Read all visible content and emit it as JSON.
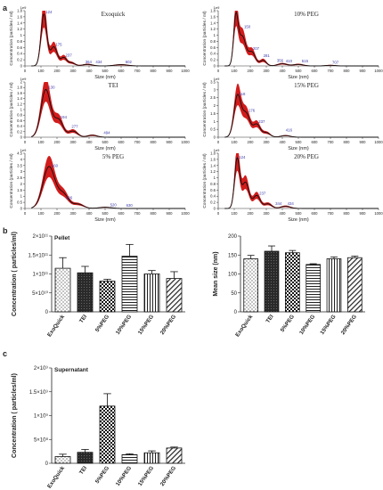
{
  "panels": {
    "a": "a",
    "b": "b",
    "c": "c"
  },
  "nta": {
    "xlabel": "Size (nm)",
    "ylabel": "Concentration (particles / ml)",
    "x_ticks": [
      "0",
      "100",
      "200",
      "300",
      "400",
      "500",
      "600",
      "700",
      "800",
      "900",
      "1000"
    ],
    "y_unit_label": "1e9",
    "charts": [
      {
        "title": "Exoquick",
        "y_ticks": [
          "0",
          "0.2",
          "0.4",
          "0.6",
          "0.8",
          "1",
          "1.2",
          "1.4",
          "1.6",
          "1.8"
        ],
        "ylim": [
          0,
          1.8
        ],
        "xlim": [
          0,
          1000
        ],
        "peaks": [
          {
            "x": 118,
            "y": 1.68,
            "w": 18
          },
          {
            "x": 180,
            "y": 0.62,
            "w": 22
          },
          {
            "x": 242,
            "y": 0.26,
            "w": 18
          },
          {
            "x": 290,
            "y": 0.1,
            "w": 22
          },
          {
            "x": 390,
            "y": 0.05,
            "w": 30
          },
          {
            "x": 600,
            "y": 0.04,
            "w": 40
          }
        ],
        "labels": [
          {
            "x": 118,
            "y": 1.68,
            "text": "124"
          },
          {
            "x": 180,
            "y": 0.62,
            "text": "175"
          },
          {
            "x": 242,
            "y": 0.28,
            "text": "237"
          },
          {
            "x": 365,
            "y": 0.06,
            "text": "364"
          },
          {
            "x": 430,
            "y": 0.06,
            "text": "434"
          },
          {
            "x": 615,
            "y": 0.06,
            "text": "602"
          }
        ]
      },
      {
        "title": "10% PEG",
        "y_ticks": [
          "0",
          "0.2",
          "0.4",
          "0.6",
          "0.8",
          "1",
          "1.2",
          "1.4",
          "1.6",
          "1.8"
        ],
        "ylim": [
          0,
          1.8
        ],
        "xlim": [
          0,
          1000
        ],
        "peaks": [
          {
            "x": 110,
            "y": 1.55,
            "w": 14
          },
          {
            "x": 150,
            "y": 0.95,
            "w": 22
          },
          {
            "x": 210,
            "y": 0.45,
            "w": 22
          },
          {
            "x": 280,
            "y": 0.18,
            "w": 20
          },
          {
            "x": 400,
            "y": 0.07,
            "w": 30
          },
          {
            "x": 500,
            "y": 0.05,
            "w": 30
          },
          {
            "x": 700,
            "y": 0.02,
            "w": 30
          }
        ],
        "labels": [
          {
            "x": 150,
            "y": 1.2,
            "text": "150"
          },
          {
            "x": 205,
            "y": 0.5,
            "text": "207"
          },
          {
            "x": 270,
            "y": 0.26,
            "text": "281"
          },
          {
            "x": 355,
            "y": 0.1,
            "text": "356"
          },
          {
            "x": 410,
            "y": 0.09,
            "text": "410"
          },
          {
            "x": 510,
            "y": 0.08,
            "text": "515"
          },
          {
            "x": 700,
            "y": 0.05,
            "text": "707"
          }
        ]
      },
      {
        "title": "TEI",
        "y_ticks": [
          "0",
          "0.2",
          "0.4",
          "0.6",
          "0.8",
          "1",
          "1.2",
          "1.4",
          "1.6",
          "1.8",
          "2"
        ],
        "ylim": [
          0,
          2
        ],
        "xlim": [
          0,
          1000
        ],
        "peaks": [
          {
            "x": 130,
            "y": 1.72,
            "w": 30
          },
          {
            "x": 210,
            "y": 0.62,
            "w": 28
          },
          {
            "x": 300,
            "y": 0.22,
            "w": 28
          },
          {
            "x": 420,
            "y": 0.07,
            "w": 30
          }
        ],
        "labels": [
          {
            "x": 135,
            "y": 1.72,
            "text": "130"
          },
          {
            "x": 210,
            "y": 0.65,
            "text": "194"
          },
          {
            "x": 280,
            "y": 0.3,
            "text": "277"
          },
          {
            "x": 480,
            "y": 0.08,
            "text": "494"
          }
        ]
      },
      {
        "title": "15% PEG",
        "y_ticks": [
          "0",
          "0.5",
          "1",
          "1.5",
          "2",
          "2.5",
          "3",
          "3.5"
        ],
        "ylim": [
          0,
          3.5
        ],
        "xlim": [
          0,
          1000
        ],
        "peaks": [
          {
            "x": 120,
            "y": 2.6,
            "w": 22
          },
          {
            "x": 175,
            "y": 1.45,
            "w": 24
          },
          {
            "x": 240,
            "y": 0.8,
            "w": 22
          },
          {
            "x": 300,
            "y": 0.28,
            "w": 24
          },
          {
            "x": 420,
            "y": 0.1,
            "w": 30
          }
        ],
        "labels": [
          {
            "x": 120,
            "y": 2.6,
            "text": "118"
          },
          {
            "x": 178,
            "y": 1.55,
            "text": "176"
          },
          {
            "x": 240,
            "y": 0.85,
            "text": "237"
          },
          {
            "x": 410,
            "y": 0.3,
            "text": "416"
          }
        ]
      },
      {
        "title": "5% PEG",
        "y_ticks": [
          "0",
          "0.5",
          "1",
          "1.5",
          "2",
          "2.5",
          "3",
          "3.5",
          "4",
          "4.5"
        ],
        "ylim": [
          0,
          4.5
        ],
        "xlim": [
          0,
          1000
        ],
        "peaks": [
          {
            "x": 150,
            "y": 3.4,
            "w": 38
          },
          {
            "x": 240,
            "y": 1.1,
            "w": 32
          },
          {
            "x": 330,
            "y": 0.35,
            "w": 35
          },
          {
            "x": 500,
            "y": 0.1,
            "w": 40
          }
        ],
        "labels": [
          {
            "x": 155,
            "y": 3.3,
            "text": "160"
          },
          {
            "x": 245,
            "y": 0.7,
            "text": "226"
          },
          {
            "x": 520,
            "y": 0.12,
            "text": "520"
          },
          {
            "x": 620,
            "y": 0.08,
            "text": "630"
          }
        ]
      },
      {
        "title": "20% PEG",
        "y_ticks": [
          "0",
          "0.2",
          "0.4",
          "0.6",
          "0.8",
          "1",
          "1.2",
          "1.4",
          "1.6",
          "1.8"
        ],
        "ylim": [
          0,
          1.8
        ],
        "xlim": [
          0,
          1000
        ],
        "peaks": [
          {
            "x": 118,
            "y": 1.6,
            "w": 16
          },
          {
            "x": 170,
            "y": 0.85,
            "w": 22
          },
          {
            "x": 240,
            "y": 0.42,
            "w": 22
          },
          {
            "x": 310,
            "y": 0.15,
            "w": 24
          },
          {
            "x": 420,
            "y": 0.07,
            "w": 30
          }
        ],
        "labels": [
          {
            "x": 118,
            "y": 1.6,
            "text": "124"
          },
          {
            "x": 245,
            "y": 0.42,
            "text": "237"
          },
          {
            "x": 345,
            "y": 0.08,
            "text": "344"
          },
          {
            "x": 420,
            "y": 0.08,
            "text": "434"
          }
        ]
      }
    ]
  },
  "chart_data": [
    {
      "type": "bar",
      "title": "Pellet",
      "categories": [
        "ExoQuick",
        "TEI",
        "5%PEG",
        "10%PEG",
        "15%PEG",
        "20%PEG"
      ],
      "values": [
        115000000000.0,
        103000000000.0,
        81000000000.0,
        147000000000.0,
        100000000000.0,
        88000000000.0
      ],
      "errors": [
        28000000000.0,
        17000000000.0,
        5000000000.0,
        31000000000.0,
        9000000000.0,
        18000000000.0
      ],
      "ylabel": "Concentration ( particles/ml)",
      "ylim": [
        0,
        200000000000.0
      ],
      "y_ticks": [
        0,
        50000000000.0,
        100000000000.0,
        150000000000.0,
        200000000000.0
      ],
      "y_tick_labels": [
        "0",
        "5×10¹⁰",
        "1×10¹¹",
        "1.5×10¹¹",
        "2×10¹¹"
      ],
      "patterns": [
        "dots",
        "dark",
        "checker",
        "hlines",
        "vlines",
        "diag"
      ],
      "grid": false
    },
    {
      "type": "bar",
      "title": "",
      "categories": [
        "ExoQuick",
        "TEI",
        "5%PEG",
        "10%PEG",
        "15%PEG",
        "20%PEG"
      ],
      "values": [
        140,
        160,
        156,
        125,
        140,
        143
      ],
      "errors": [
        9,
        14,
        6,
        2,
        5,
        4
      ],
      "ylabel": "Mean size (nm)",
      "ylim": [
        0,
        200
      ],
      "y_ticks": [
        0,
        50,
        100,
        150,
        200
      ],
      "y_tick_labels": [
        "0",
        "50",
        "100",
        "150",
        "200"
      ],
      "patterns": [
        "dots",
        "dark",
        "checker",
        "hlines",
        "vlines",
        "diag"
      ],
      "grid": false
    },
    {
      "type": "bar",
      "title": "Supernatant",
      "categories": [
        "ExoQuick",
        "TEI",
        "5%PEG",
        "10%PEG",
        "15%PEG",
        "20%PEG"
      ],
      "values": [
        140000000.0,
        230000000.0,
        1200000000.0,
        180000000.0,
        220000000.0,
        320000000.0
      ],
      "errors": [
        50000000.0,
        60000000.0,
        260000000.0,
        20000000.0,
        40000000.0,
        20000000.0
      ],
      "ylabel": "Concentration ( particles/ml)",
      "ylim": [
        0,
        2000000000.0
      ],
      "y_ticks": [
        0,
        500000000.0,
        1000000000.0,
        1500000000.0,
        2000000000.0
      ],
      "y_tick_labels": [
        "0",
        "5×10⁸",
        "1×10⁹",
        "1.5×10⁹",
        "2×10⁹"
      ],
      "patterns": [
        "dots",
        "dark",
        "checker",
        "hlines",
        "vlines",
        "diag"
      ],
      "grid": false
    }
  ]
}
